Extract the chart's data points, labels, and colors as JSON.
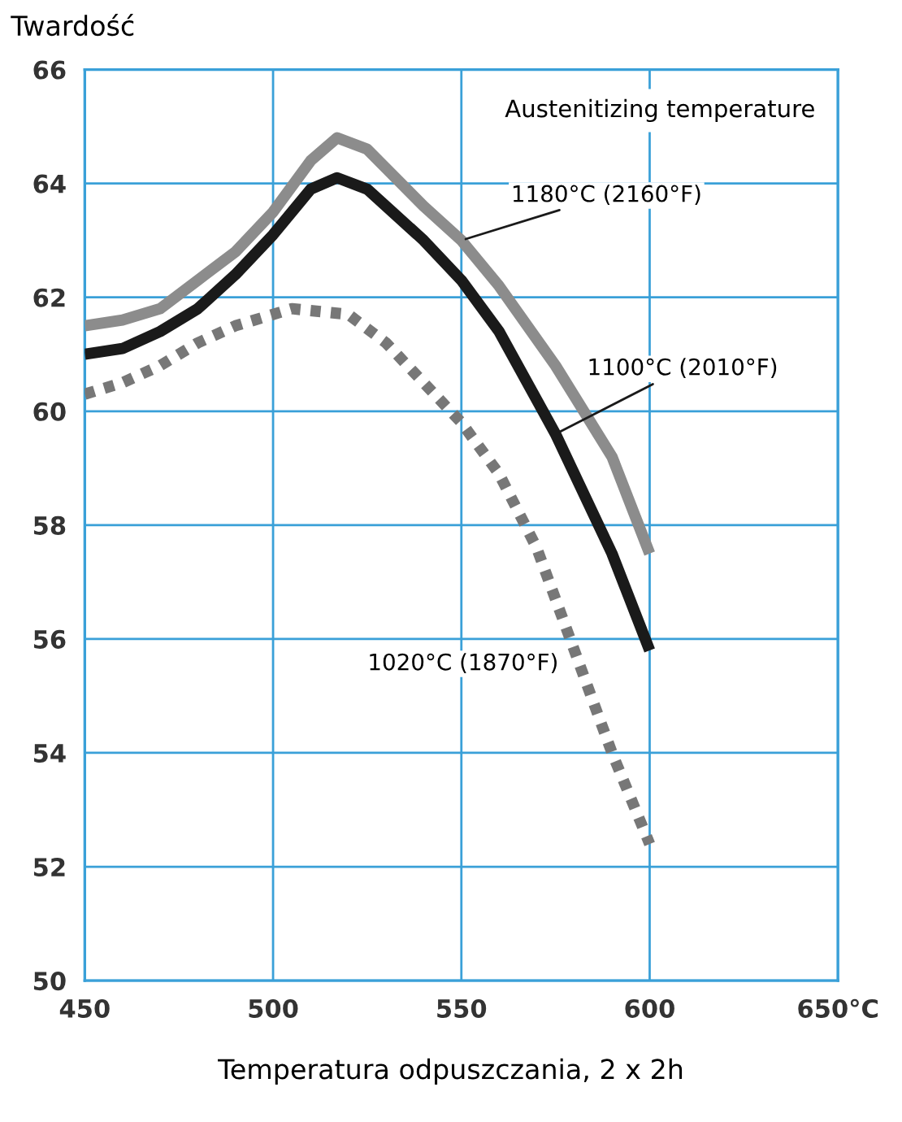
{
  "chart_data": {
    "type": "line",
    "ylabel": "Twardość",
    "xlabel": "Temperatura odpuszczania, 2 x 2h",
    "annotations": [
      "Austenitizing temperature"
    ],
    "xlim": [
      450,
      650
    ],
    "xticks": [
      450,
      500,
      550,
      600,
      {
        "value": 650,
        "label": "650°C"
      }
    ],
    "ylim": [
      50,
      66
    ],
    "yticks": [
      50,
      52,
      54,
      56,
      58,
      60,
      62,
      64,
      66
    ],
    "grid": true,
    "legend": false,
    "series": [
      {
        "name": "1180°C (2160°F)",
        "color": "#8c8c8c",
        "line_style": "solid",
        "x": [
          450,
          460,
          470,
          480,
          490,
          500,
          510,
          517,
          525,
          540,
          550,
          560,
          575,
          590,
          600
        ],
        "values": [
          61.5,
          61.6,
          61.8,
          62.3,
          62.8,
          63.5,
          64.4,
          64.8,
          64.6,
          63.6,
          63.0,
          62.2,
          60.8,
          59.2,
          57.5
        ]
      },
      {
        "name": "1100°C (2010°F)",
        "color": "#1a1a1a",
        "line_style": "solid",
        "x": [
          450,
          460,
          470,
          480,
          490,
          500,
          510,
          517,
          525,
          540,
          550,
          560,
          575,
          590,
          600
        ],
        "values": [
          61.0,
          61.1,
          61.4,
          61.8,
          62.4,
          63.1,
          63.9,
          64.1,
          63.9,
          63.0,
          62.3,
          61.4,
          59.6,
          57.5,
          55.8
        ]
      },
      {
        "name": "1020°C (1870°F)",
        "color": "#777777",
        "line_style": "dotted",
        "x": [
          450,
          460,
          470,
          480,
          490,
          505,
          520,
          530,
          540,
          550,
          560,
          570,
          580,
          590,
          600
        ],
        "values": [
          60.3,
          60.5,
          60.8,
          61.2,
          61.5,
          61.8,
          61.7,
          61.2,
          60.5,
          59.8,
          58.9,
          57.6,
          55.8,
          54.0,
          52.4
        ]
      }
    ]
  }
}
